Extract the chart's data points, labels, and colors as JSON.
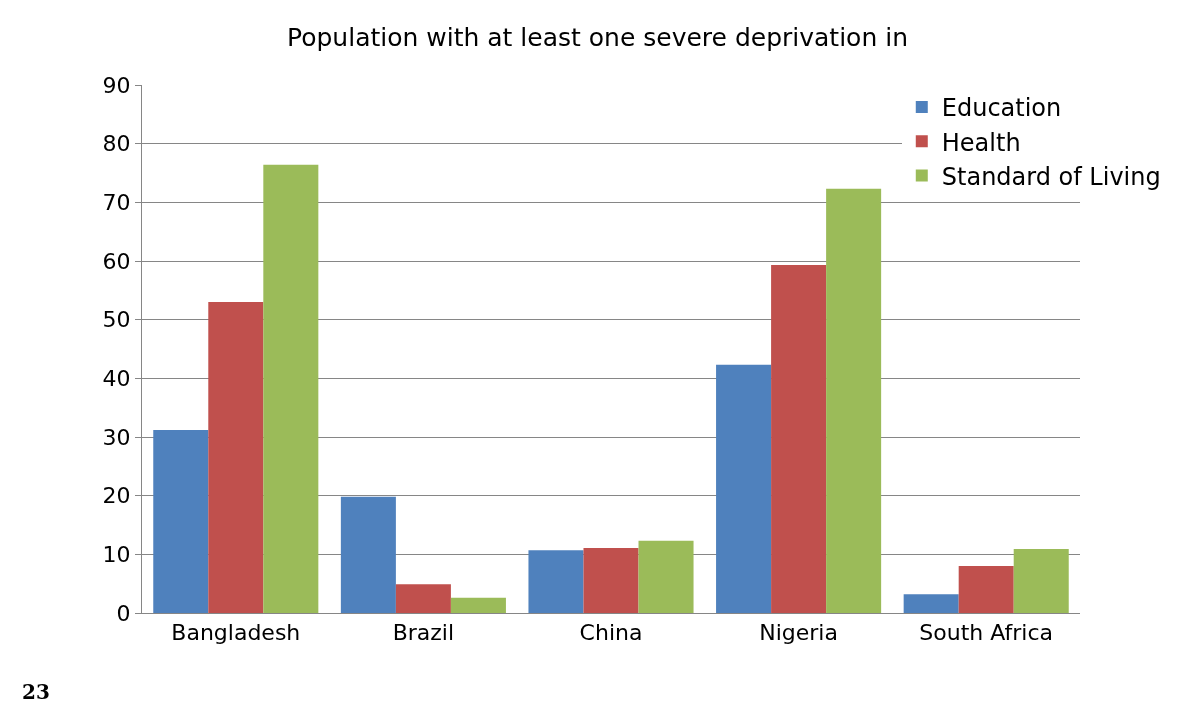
{
  "chart_data": {
    "type": "bar",
    "title": "Population with at least one severe deprivation in",
    "categories": [
      "Bangladesh",
      "Brazil",
      "China",
      "Nigeria",
      "South Africa"
    ],
    "series": [
      {
        "name": "Education",
        "color": "#4f81bd",
        "values": [
          31.2,
          19.8,
          10.7,
          42.3,
          3.2
        ]
      },
      {
        "name": "Health",
        "color": "#c0504d",
        "values": [
          53,
          4.9,
          11.1,
          59.3,
          8
        ]
      },
      {
        "name": "Standard of Living",
        "color": "#9bbb59",
        "values": [
          76.4,
          2.6,
          12.3,
          72.3,
          10.9
        ]
      }
    ],
    "ylim": [
      0,
      90
    ],
    "yticks": [
      0,
      10,
      20,
      30,
      40,
      50,
      60,
      70,
      80,
      90
    ],
    "grid": "y",
    "legend": "top right",
    "annotations": [
      "23"
    ]
  }
}
